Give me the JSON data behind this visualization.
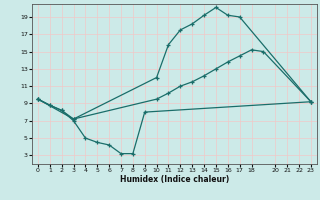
{
  "xlabel": "Humidex (Indice chaleur)",
  "bg_color": "#cceae8",
  "grid_color": "#f0c8c8",
  "line_color": "#1a6e6a",
  "xlim": [
    -0.5,
    23.5
  ],
  "ylim": [
    2,
    20.5
  ],
  "yticks": [
    3,
    5,
    7,
    9,
    11,
    13,
    15,
    17,
    19
  ],
  "xticks": [
    0,
    1,
    2,
    3,
    4,
    5,
    6,
    7,
    8,
    9,
    10,
    11,
    12,
    13,
    14,
    15,
    16,
    17,
    18,
    20,
    21,
    22,
    23
  ],
  "line1_x": [
    0,
    1,
    2,
    3,
    10,
    11,
    12,
    13,
    14,
    15,
    16,
    17,
    23
  ],
  "line1_y": [
    9.5,
    8.8,
    8.2,
    7.2,
    12.0,
    15.8,
    17.5,
    18.2,
    19.2,
    20.1,
    19.2,
    19.0,
    9.2
  ],
  "line2_x": [
    0,
    3,
    10,
    11,
    12,
    13,
    14,
    15,
    16,
    17,
    18,
    19,
    23
  ],
  "line2_y": [
    9.5,
    7.2,
    9.5,
    10.2,
    11.0,
    11.5,
    12.2,
    13.0,
    13.8,
    14.5,
    15.2,
    15.0,
    9.2
  ],
  "line3_x": [
    0,
    1,
    2,
    3,
    4,
    5,
    6,
    7,
    8,
    9,
    23
  ],
  "line3_y": [
    9.5,
    8.8,
    8.2,
    7.0,
    5.0,
    4.5,
    4.2,
    3.2,
    3.2,
    8.0,
    9.2
  ]
}
